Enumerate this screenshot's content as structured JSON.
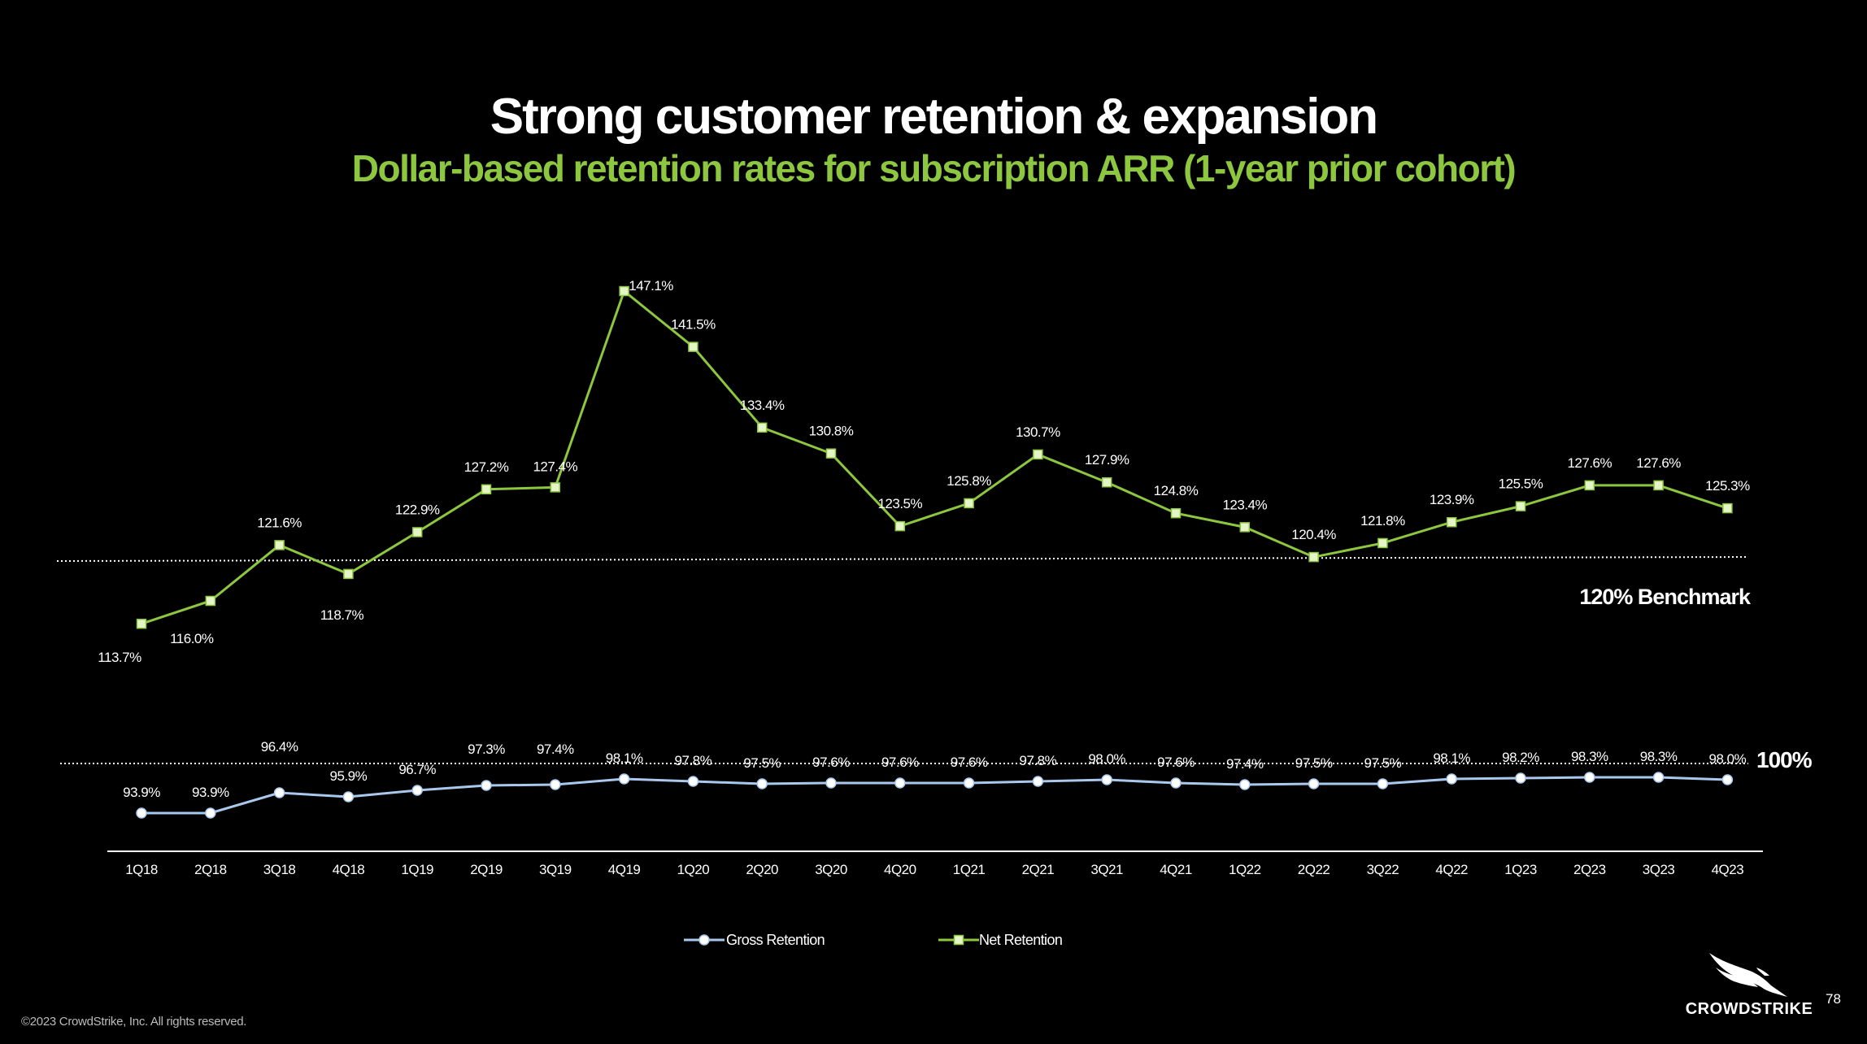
{
  "slide": {
    "title": "Strong customer retention & expansion",
    "subtitle": "Dollar-based retention rates for subscription ARR (1-year prior cohort)",
    "footer": "©2023 CrowdStrike, Inc. All rights reserved.",
    "page_number": "78",
    "logo_text": "CROWDSTRIKE",
    "logo_icon": "falcon-icon"
  },
  "colors": {
    "background": "#000000",
    "net": "#8dc63f",
    "net_marker": "#e6f5c8",
    "gross": "#a9c8ee",
    "gross_marker": "#ffffff",
    "subtitle": "#8dc63f"
  },
  "chart_data": {
    "type": "line",
    "title": "Dollar-based retention rates for subscription ARR (1-year prior cohort)",
    "categories": [
      "1Q18",
      "2Q18",
      "3Q18",
      "4Q18",
      "1Q19",
      "2Q19",
      "3Q19",
      "4Q19",
      "1Q20",
      "2Q20",
      "3Q20",
      "4Q20",
      "1Q21",
      "2Q21",
      "3Q21",
      "4Q21",
      "1Q22",
      "2Q22",
      "3Q22",
      "4Q22",
      "1Q23",
      "2Q23",
      "3Q23",
      "4Q23"
    ],
    "series": [
      {
        "name": "Gross Retention",
        "marker": "circle",
        "values": [
          93.9,
          93.9,
          96.4,
          95.9,
          96.7,
          97.3,
          97.4,
          98.1,
          97.8,
          97.5,
          97.6,
          97.6,
          97.6,
          97.8,
          98.0,
          97.6,
          97.4,
          97.5,
          97.5,
          98.1,
          98.2,
          98.3,
          98.3,
          98.0
        ],
        "labels": [
          "93.9%",
          "93.9%",
          "96.4%",
          "95.9%",
          "96.7%",
          "97.3%",
          "97.4%",
          "98.1%",
          "97.8%",
          "97.5%",
          "97.6%",
          "97.6%",
          "97.6%",
          "97.8%",
          "98.0%",
          "97.6%",
          "97.4%",
          "97.5%",
          "97.5%",
          "98.1%",
          "98.2%",
          "98.3%",
          "98.3%",
          "98.0%"
        ]
      },
      {
        "name": "Net Retention",
        "marker": "square",
        "values": [
          113.7,
          116.0,
          121.6,
          118.7,
          122.9,
          127.2,
          127.4,
          147.1,
          141.5,
          133.4,
          130.8,
          123.5,
          125.8,
          130.7,
          127.9,
          124.8,
          123.4,
          120.4,
          121.8,
          123.9,
          125.5,
          127.6,
          127.6,
          125.3
        ],
        "labels": [
          "113.7%",
          "116.0%",
          "121.6%",
          "118.7%",
          "122.9%",
          "127.2%",
          "127.4%",
          "147.1%",
          "141.5%",
          "133.4%",
          "130.8%",
          "123.5%",
          "125.8%",
          "130.7%",
          "127.9%",
          "124.8%",
          "123.4%",
          "120.4%",
          "121.8%",
          "123.9%",
          "125.5%",
          "127.6%",
          "127.6%",
          "125.3%"
        ]
      }
    ],
    "reference_lines": [
      {
        "value": 120,
        "label": "120% Benchmark"
      },
      {
        "value": 100,
        "label": "100%"
      }
    ],
    "legend": [
      "Gross Retention",
      "Net Retention"
    ],
    "legend_position": "bottom",
    "grid": false
  }
}
